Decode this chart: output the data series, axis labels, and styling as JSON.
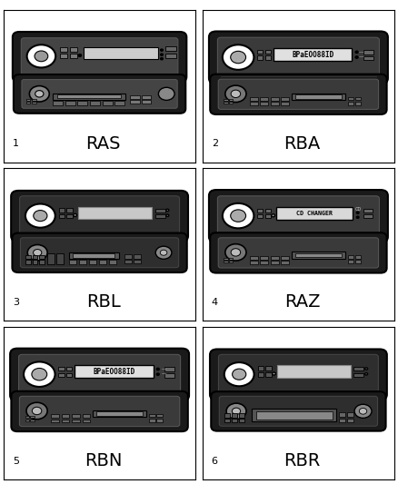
{
  "background_color": "#ffffff",
  "border_color": "#000000",
  "radio_body_color": "#1a1a1a",
  "radio_inner_color": "#2a2a2a",
  "display_color": "#cccccc",
  "button_color": "#888888",
  "light_button_color": "#aaaaaa",
  "white": "#ffffff",
  "radios": [
    {
      "number": "1",
      "label": "RAS"
    },
    {
      "number": "2",
      "label": "RBA"
    },
    {
      "number": "3",
      "label": "RBL"
    },
    {
      "number": "4",
      "label": "RAZ"
    },
    {
      "number": "5",
      "label": "RBN"
    },
    {
      "number": "6",
      "label": "RBR"
    }
  ],
  "label_fontsize": 14,
  "number_fontsize": 8,
  "fig_width": 4.38,
  "fig_height": 5.33
}
